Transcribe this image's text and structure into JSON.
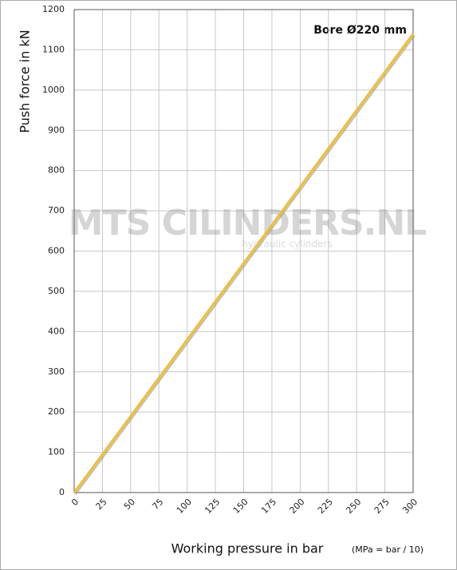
{
  "chart_data": {
    "type": "line",
    "annotation": "Bore Ø220 mm",
    "xlabel": "Working pressure in bar",
    "xlabel_note": "(MPa = bar / 10)",
    "ylabel": "Push force in kN",
    "watermark": "MTS CILINDERS.NL",
    "watermark_sub": "hydraulic cylinders",
    "x": [
      0,
      25,
      50,
      75,
      100,
      125,
      150,
      175,
      200,
      225,
      250,
      275,
      300
    ],
    "series": [
      {
        "name": "Bore Ø220 mm",
        "color": "#f2c12e",
        "values": [
          0,
          95,
          190,
          285,
          380,
          475,
          570,
          665,
          760,
          855,
          950,
          1045,
          1140
        ]
      }
    ],
    "xlim": [
      0,
      300
    ],
    "xticks": [
      0,
      25,
      50,
      75,
      100,
      125,
      150,
      175,
      200,
      225,
      250,
      275,
      300
    ],
    "ylim": [
      0,
      1200
    ],
    "yticks": [
      0,
      100,
      200,
      300,
      400,
      500,
      600,
      700,
      800,
      900,
      1000,
      1100,
      1200
    ],
    "grid": true
  }
}
